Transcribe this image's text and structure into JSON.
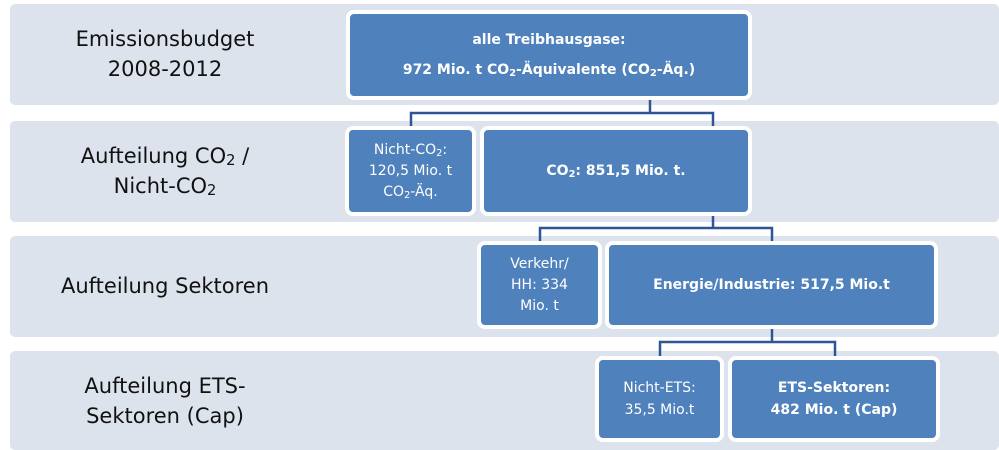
{
  "rows": [
    {
      "label": [
        [
          "Emissionsbudget"
        ],
        [
          "2008-2012"
        ]
      ]
    },
    {
      "label": [
        [
          "Aufteilung CO",
          "2",
          " /"
        ],
        [
          "Nicht-CO",
          "2"
        ]
      ]
    },
    {
      "label": [
        [
          "Aufteilung Sektoren"
        ]
      ]
    },
    {
      "label": [
        [
          "Aufteilung ETS-"
        ],
        [
          "Sektoren (Cap)"
        ]
      ]
    }
  ],
  "boxes": [
    {
      "lines": [
        [
          "alle Treibhausgase:"
        ],
        [
          "972 Mio. t CO",
          "2",
          "-Äquivalente (CO",
          "2",
          "-Äq.)"
        ]
      ],
      "bold": true
    },
    {
      "lines": [
        [
          "Nicht-CO",
          "2",
          ":"
        ],
        [
          "120,5 Mio. t"
        ],
        [
          "CO",
          "2",
          "-Äq."
        ]
      ],
      "bold": false
    },
    {
      "lines": [
        [
          "CO",
          "2",
          ": 851,5 Mio. t."
        ]
      ],
      "bold": true
    },
    {
      "lines": [
        [
          "Verkehr/"
        ],
        [
          "HH: 334"
        ],
        [
          "Mio. t"
        ]
      ],
      "bold": false
    },
    {
      "lines": [
        [
          "Energie/Industrie: 517,5 Mio.t"
        ]
      ],
      "bold": true
    },
    {
      "lines": [
        [
          "Nicht-ETS:"
        ],
        [
          "35,5 Mio.t"
        ]
      ],
      "bold": false
    },
    {
      "lines": [
        [
          "ETS-Sektoren:"
        ],
        [
          "482 Mio. t (Cap)"
        ]
      ],
      "bold": true
    }
  ]
}
